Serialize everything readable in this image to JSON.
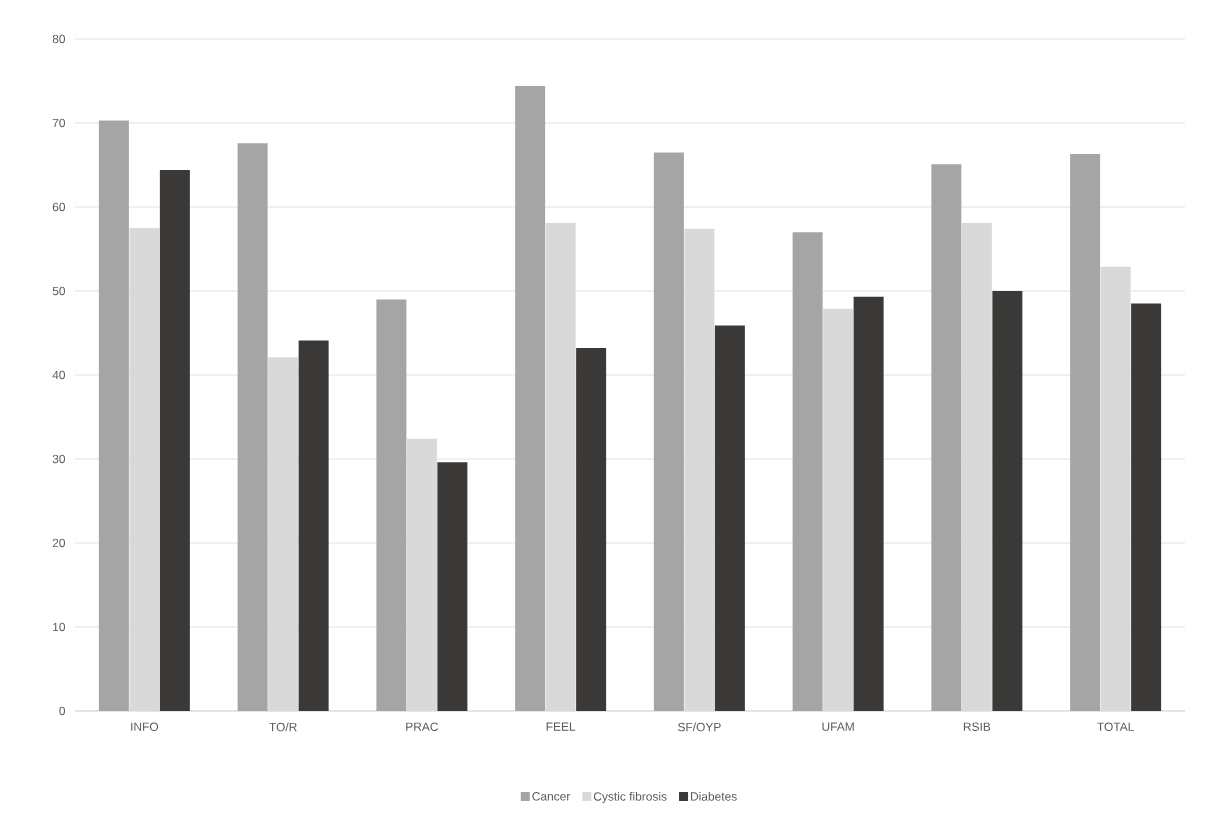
{
  "chart_data": {
    "type": "bar",
    "categories": [
      "INFO",
      "TO/R",
      "PRAC",
      "FEEL",
      "SF/OYP",
      "UFAM",
      "RSIB",
      "TOTAL"
    ],
    "series": [
      {
        "name": "Cancer",
        "color": "#a5a5a5",
        "values": [
          70.3,
          67.6,
          49.0,
          74.4,
          66.5,
          57.0,
          65.1,
          66.3
        ]
      },
      {
        "name": "Cystic fibrosis",
        "color": "#d9d9d9",
        "values": [
          57.5,
          42.1,
          32.4,
          58.1,
          57.4,
          47.9,
          58.1,
          52.9
        ]
      },
      {
        "name": "Diabetes",
        "color": "#3a3937",
        "values": [
          64.4,
          44.1,
          29.6,
          43.2,
          45.9,
          49.3,
          50.0,
          48.5
        ]
      }
    ],
    "ylim": [
      0,
      80
    ],
    "yticks": [
      0,
      10,
      20,
      30,
      40,
      50,
      60,
      70,
      80
    ],
    "grid": "y",
    "legend": "bottom"
  }
}
